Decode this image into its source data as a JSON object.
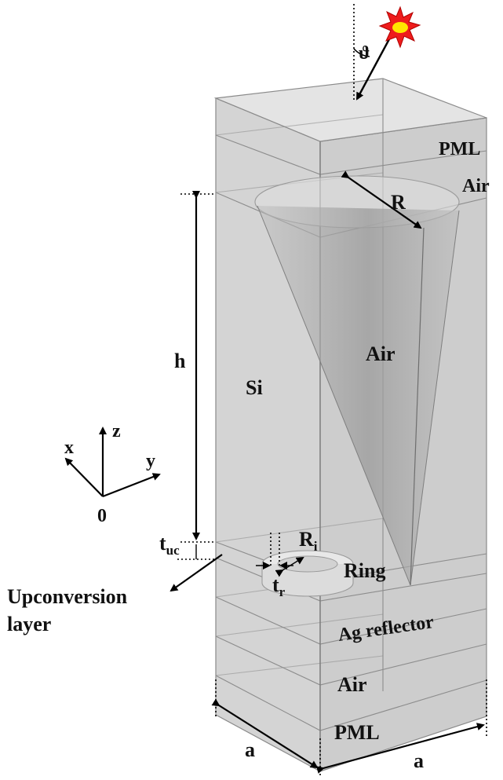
{
  "figure": {
    "labels": {
      "angle": "ϑ",
      "top_pml": "PML",
      "top_air": "Air",
      "cone_radius": "R",
      "cone_air": "Air",
      "silicon": "Si",
      "height": "h",
      "axis_x": "x",
      "axis_y": "y",
      "axis_z": "z",
      "origin": "0",
      "tuc_main": "t",
      "tuc_sub": "uc",
      "ri_main": "R",
      "ri_sub": "i",
      "tr_main": "t",
      "tr_sub": "r",
      "ring": "Ring",
      "upconversion_line1": "Upconversion",
      "upconversion_line2": "layer",
      "ag_reflector": "Ag reflector",
      "bottom_air": "Air",
      "bottom_pml": "PML",
      "width_left": "a",
      "width_right": "a"
    },
    "colors": {
      "block_fill": "#d2d2d2",
      "block_front": "#c8c8c8",
      "block_top": "#e2e2e2",
      "cone_dark": "#8f8f8f",
      "sun_outer": "#ee1c1c",
      "sun_inner": "#ffe600",
      "ink": "#000000"
    },
    "icons": {
      "light_source": "sun-icon"
    }
  }
}
